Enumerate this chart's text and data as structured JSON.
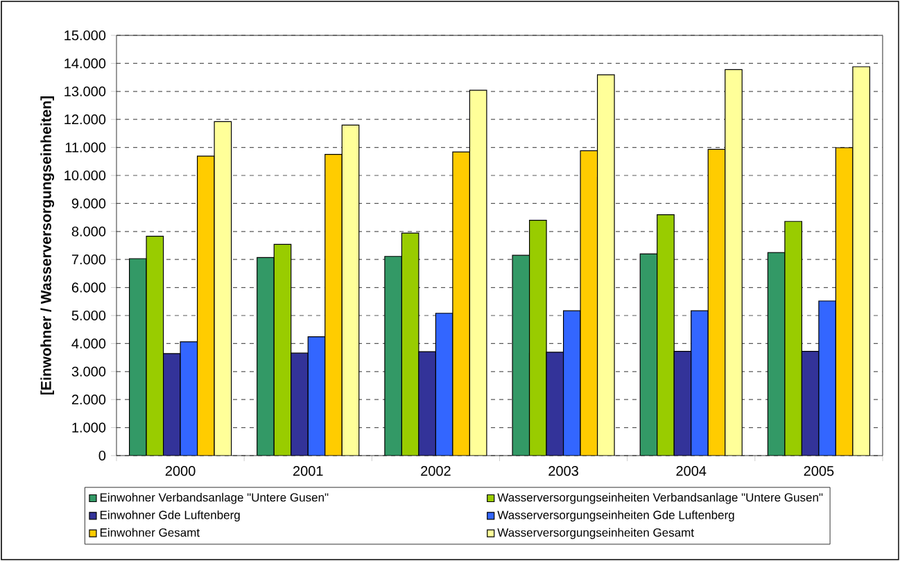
{
  "chart_data": {
    "type": "bar",
    "ylabel": "[Einwohner / Wasserversorgungseinheiten]",
    "categories": [
      "2000",
      "2001",
      "2002",
      "2003",
      "2004",
      "2005"
    ],
    "series": [
      {
        "name": "Einwohner Verbandsanlage \"Untere Gusen\"",
        "color": "#339966",
        "values": [
          7030,
          7070,
          7110,
          7150,
          7200,
          7250
        ]
      },
      {
        "name": "Wasserversorgungseinheiten Verbandsanlage \"Untere Gusen\"",
        "color": "#99cc00",
        "values": [
          7830,
          7540,
          7940,
          8400,
          8600,
          8360
        ]
      },
      {
        "name": "Einwohner Gde Luftenberg",
        "color": "#333399",
        "values": [
          3640,
          3660,
          3710,
          3690,
          3720,
          3720
        ]
      },
      {
        "name": "Wasserversorgungseinheiten Gde Luftenberg",
        "color": "#3366ff",
        "values": [
          4060,
          4240,
          5080,
          5170,
          5170,
          5520
        ]
      },
      {
        "name": "Einwohner Gesamt",
        "color": "#ffcc00",
        "values": [
          10690,
          10750,
          10840,
          10880,
          10930,
          10990
        ]
      },
      {
        "name": "Wasserversorgungseinheiten Gesamt",
        "color": "#ffff99",
        "values": [
          11920,
          11800,
          13040,
          13590,
          13780,
          13880
        ]
      }
    ],
    "ylim": [
      0,
      15000
    ],
    "yticks": [
      0,
      {
        "value": 1000,
        "label": "1.000"
      },
      {
        "value": 2000,
        "label": "2.000"
      },
      {
        "value": 3000,
        "label": "3.000"
      },
      {
        "value": 4000,
        "label": "4.000"
      },
      {
        "value": 5000,
        "label": "5.000"
      },
      {
        "value": 6000,
        "label": "6.000"
      },
      {
        "value": 7000,
        "label": "7.000"
      },
      {
        "value": 8000,
        "label": "8.000"
      },
      {
        "value": 9000,
        "label": "9.000"
      },
      {
        "value": 10000,
        "label": "10.000"
      },
      {
        "value": 11000,
        "label": "11.000"
      },
      {
        "value": 12000,
        "label": "12.000"
      },
      {
        "value": 13000,
        "label": "13.000"
      },
      {
        "value": 14000,
        "label": "14.000"
      },
      {
        "value": 15000,
        "label": "15.000"
      }
    ],
    "grid": "y",
    "legend": "bottom"
  }
}
